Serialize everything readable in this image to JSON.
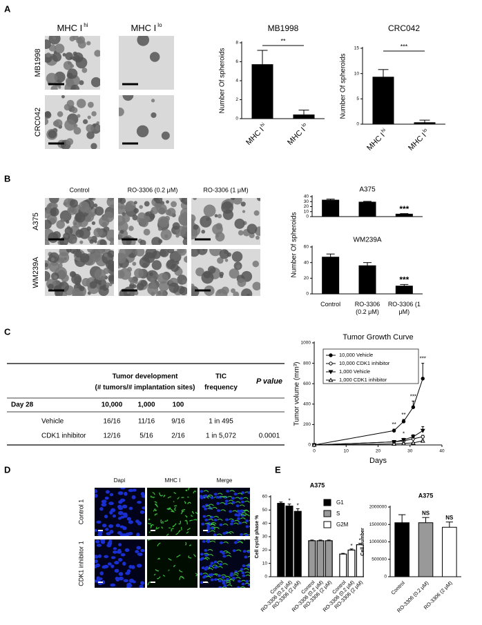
{
  "panels": [
    "A",
    "B",
    "C",
    "D",
    "E"
  ],
  "images": {
    "A": {
      "columns": [
        "MHC I",
        "MHC I"
      ],
      "column_superscripts": [
        "hi",
        "lo"
      ],
      "rows": [
        "MB1998",
        "CRC042"
      ]
    },
    "B": {
      "columns": [
        "Control",
        "RO-3306 (0.2 μM)",
        "RO-3306 (1 μM)"
      ],
      "rows": [
        "A375",
        "WM239A"
      ]
    },
    "D": {
      "columns": [
        "Dapi",
        "MHC I",
        "Merge"
      ],
      "rows": [
        "Control 1",
        "CDK1 inhibitor 1"
      ]
    }
  },
  "table": {
    "header_group": "Tumor development",
    "header_group_sub": "(# tumors/# implantation sites)",
    "header_tic": [
      "TIC",
      "frequency"
    ],
    "header_p": "P value",
    "day": "Day 28",
    "doses": [
      "10,000",
      "1,000",
      "100"
    ],
    "rows": [
      [
        "Vehicle",
        "16/16",
        "11/16",
        "9/16",
        "1 in 495"
      ],
      [
        "CDK1 inhibitor",
        "12/16",
        "5/16",
        "2/16",
        "1 in 5,072",
        "0.0001"
      ]
    ]
  },
  "chart_data": [
    {
      "type": "bar",
      "title": "MB1998",
      "y_label": "Number Of spheroids",
      "categories": [
        "MHC I",
        "MHC I"
      ],
      "category_superscripts": [
        "hi",
        "lo"
      ],
      "values": [
        5.7,
        0.4
      ],
      "errors": [
        1.5,
        0.5
      ],
      "color": "#000000",
      "ylim": [
        0,
        8
      ],
      "yticks": [
        0,
        2,
        4,
        6,
        8
      ],
      "bracket_label": "**"
    },
    {
      "type": "bar",
      "title": "CRC042",
      "y_label": "Number Of spheroids",
      "categories": [
        "MHC I",
        "MHC I"
      ],
      "category_superscripts": [
        "hi",
        "lo"
      ],
      "values": [
        9.3,
        0.3
      ],
      "errors": [
        1.5,
        0.5
      ],
      "color": "#000000",
      "ylim": [
        0,
        15
      ],
      "yticks": [
        0,
        5,
        10,
        15
      ],
      "bracket_label": "***"
    },
    {
      "type": "bar",
      "title": "A375",
      "values": [
        33,
        29,
        5
      ],
      "errors": [
        2,
        1.5,
        1
      ],
      "color": "#000000",
      "significance": [
        null,
        null,
        "***"
      ],
      "ylim": [
        0,
        40
      ],
      "yticks": [
        0,
        10,
        20,
        30,
        40
      ]
    },
    {
      "type": "bar",
      "title": "WM239A",
      "y_label": "Number Of spheroids",
      "categories": [
        "Control",
        "RO-3306 (0.2 μM)",
        "RO-3306 (1 μM)"
      ],
      "values": [
        47,
        36,
        10
      ],
      "errors": [
        4,
        4,
        2
      ],
      "color": "#000000",
      "significance": [
        null,
        null,
        "***"
      ],
      "ylim": [
        0,
        60
      ],
      "yticks": [
        0,
        20,
        40,
        60
      ]
    },
    {
      "type": "line",
      "title": "Tumor Growth Curve",
      "x_label": "Days",
      "y_label": "Tumor volume (mm³)",
      "xlim": [
        0,
        40
      ],
      "xticks": [
        0,
        10,
        20,
        30,
        40
      ],
      "ylim": [
        0,
        1000
      ],
      "yticks": [
        0,
        200,
        400,
        600,
        800,
        1000
      ],
      "series": [
        {
          "name": "10,000 Vehicle",
          "color": "#000000",
          "marker": "circle",
          "x": [
            0,
            25,
            28,
            31,
            34
          ],
          "values": [
            0,
            140,
            230,
            370,
            650
          ],
          "errors": [
            0,
            15,
            20,
            60,
            150
          ],
          "significance": [
            null,
            "**",
            "**",
            "***",
            "***"
          ]
        },
        {
          "name": "10,000 CDK1 inhibitor",
          "color": "#000000",
          "marker": "circle-open",
          "x": [
            0,
            25,
            28,
            31,
            34
          ],
          "values": [
            0,
            30,
            40,
            60,
            80
          ],
          "errors": [
            0,
            5,
            8,
            10,
            15
          ]
        },
        {
          "name": "1,000 Vehicle",
          "color": "#000000",
          "marker": "triangle-down",
          "x": [
            0,
            25,
            28,
            31,
            34
          ],
          "values": [
            0,
            30,
            50,
            80,
            140
          ],
          "errors": [
            0,
            10,
            15,
            20,
            40
          ],
          "significance": [
            null,
            null,
            "*",
            null,
            null
          ]
        },
        {
          "name": "1,000 CDK1 inhibitor",
          "color": "#000000",
          "marker": "triangle-open",
          "x": [
            0,
            25,
            28,
            31,
            34
          ],
          "values": [
            0,
            10,
            15,
            20,
            40
          ],
          "errors": [
            0,
            3,
            4,
            5,
            8
          ]
        }
      ]
    },
    {
      "type": "grouped_bar",
      "title": "A375",
      "y_label": "Cell cycle phase %",
      "categories": [
        "Control",
        "RO-3306 (0.2 μM)",
        "RO-3306 (2 μM)"
      ],
      "ylim": [
        0,
        60
      ],
      "yticks": [
        0,
        10,
        20,
        30,
        40,
        50,
        60
      ],
      "series": [
        {
          "name": "G1",
          "color": "#000000",
          "values": [
            55,
            53,
            49
          ],
          "errors": [
            1,
            1.5,
            2
          ],
          "significance": [
            null,
            "*",
            "*"
          ]
        },
        {
          "name": "S",
          "color": "#999999",
          "values": [
            27,
            27,
            27
          ],
          "errors": [
            0.5,
            0.5,
            0.5
          ]
        },
        {
          "name": "G2M",
          "color": "#ffffff",
          "values": [
            17,
            20,
            24
          ],
          "errors": [
            0.5,
            0.8,
            1
          ],
          "significance": [
            null,
            "*",
            "*"
          ]
        }
      ]
    },
    {
      "type": "bar",
      "title": "A375",
      "y_label": "Cell number",
      "categories": [
        "Control",
        "RO-3306 (0.2 μM)",
        "RO-3306 (2 μM)"
      ],
      "values": [
        1550000,
        1550000,
        1420000
      ],
      "errors": [
        230000,
        150000,
        150000
      ],
      "colors": [
        "#000000",
        "#999999",
        "#ffffff"
      ],
      "significance": [
        null,
        "NS",
        "NS"
      ],
      "ylim": [
        0,
        2000000
      ],
      "yticks": [
        0,
        500000,
        1000000,
        1500000,
        2000000
      ]
    }
  ]
}
